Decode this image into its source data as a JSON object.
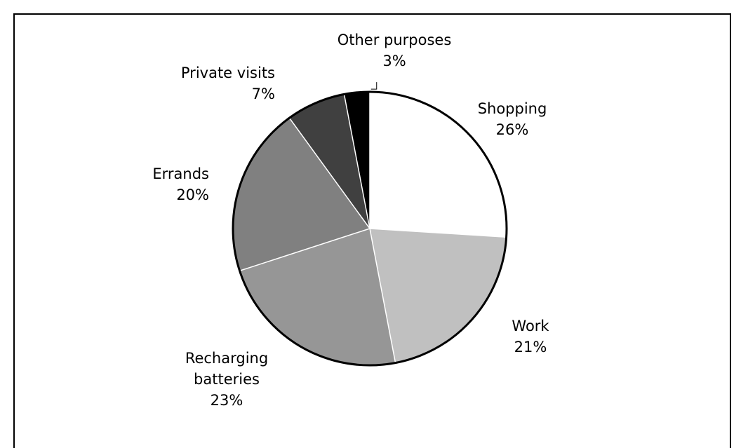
{
  "chart_data": {
    "type": "pie",
    "title": "",
    "legend": "none",
    "start_angle": "12 o'clock, clockwise",
    "slices": [
      {
        "label": "Shopping",
        "value": 26,
        "value_label": "26%",
        "color": "#ffffff"
      },
      {
        "label": "Work",
        "value": 21,
        "value_label": "21%",
        "color": "#c0c0c0"
      },
      {
        "label": "Recharging batteries",
        "value": 23,
        "value_label": "23%",
        "color": "#969696"
      },
      {
        "label": "Errands",
        "value": 20,
        "value_label": "20%",
        "color": "#808080"
      },
      {
        "label": "Private visits",
        "value": 7,
        "value_label": "7%",
        "color": "#404040"
      },
      {
        "label": "Other purposes",
        "value": 3,
        "value_label": "3%",
        "color": "#000000"
      }
    ],
    "outline_color": "#000000"
  }
}
